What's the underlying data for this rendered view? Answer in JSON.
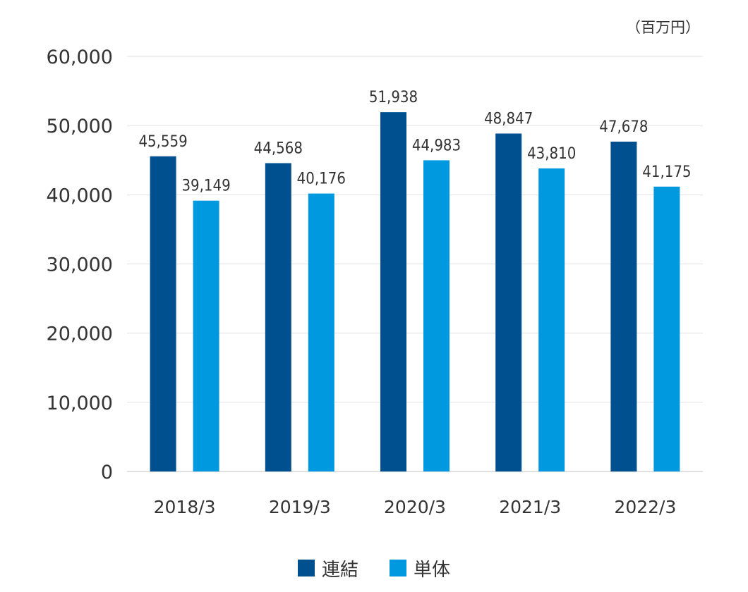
{
  "unit": "（百万円）",
  "chart_data": {
    "type": "bar",
    "categories": [
      "2018/3",
      "2019/3",
      "2020/3",
      "2021/3",
      "2022/3"
    ],
    "series": [
      {
        "name": "連結",
        "color": "#004f8f",
        "values": [
          45559,
          44568,
          51938,
          48847,
          47678
        ],
        "labels": [
          "45,559",
          "44,568",
          "51,938",
          "48,847",
          "47,678"
        ]
      },
      {
        "name": "単体",
        "color": "#0099e0",
        "values": [
          39149,
          40176,
          44983,
          43810,
          41175
        ],
        "labels": [
          "39,149",
          "40,176",
          "44,983",
          "43,810",
          "41,175"
        ]
      }
    ],
    "ylim": [
      0,
      60000
    ],
    "yticks": [
      0,
      10000,
      20000,
      30000,
      40000,
      50000,
      60000
    ],
    "ytick_labels": [
      "0",
      "10,000",
      "20,000",
      "30,000",
      "40,000",
      "50,000",
      "60,000"
    ],
    "grid": true,
    "legend_position": "bottom-center"
  }
}
